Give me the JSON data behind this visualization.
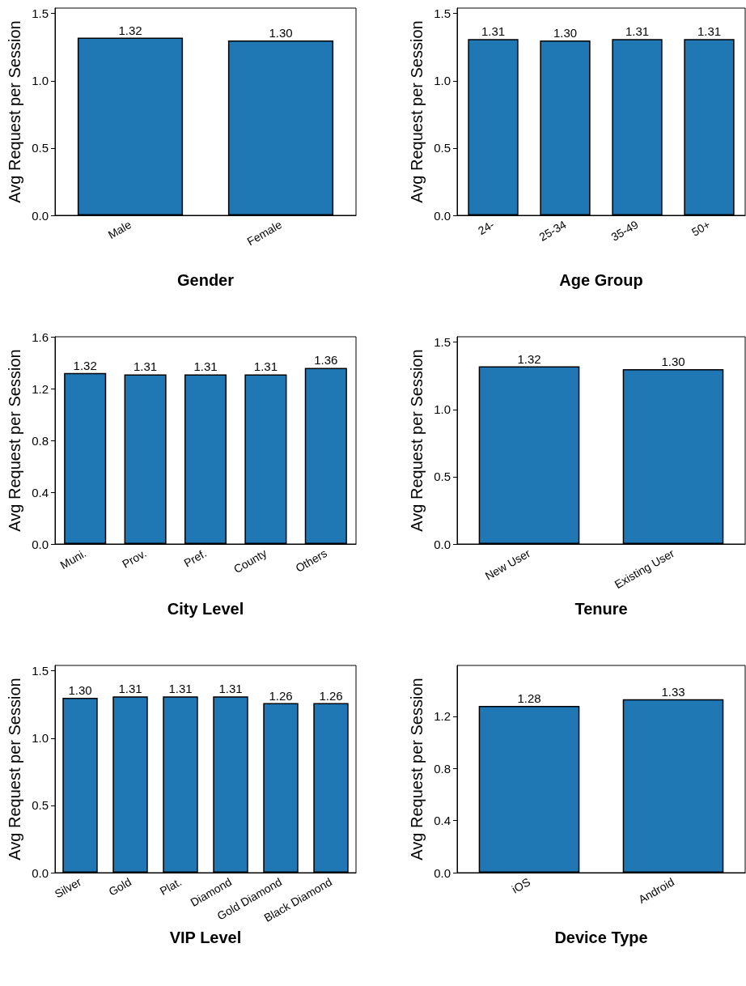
{
  "chart_data": [
    {
      "type": "bar",
      "xlabel": "Gender",
      "ylabel": "Avg Request per Session",
      "categories": [
        "Male",
        "Female"
      ],
      "values": [
        1.32,
        1.3
      ],
      "value_labels": [
        "1.32",
        "1.30"
      ],
      "color": "#1f77b4",
      "ylim": [
        0,
        1.54
      ],
      "yticks": [
        {
          "value": 0,
          "label": "0.0"
        },
        {
          "value": 0.5,
          "label": "0.5"
        },
        {
          "value": 1,
          "label": "1.0"
        },
        {
          "value": 1.5,
          "label": "1.5"
        }
      ]
    },
    {
      "type": "bar",
      "xlabel": "Age Group",
      "ylabel": "Avg Request per Session",
      "categories": [
        "24-",
        "25-34",
        "35-49",
        "50+"
      ],
      "values": [
        1.31,
        1.3,
        1.31,
        1.31
      ],
      "value_labels": [
        "1.31",
        "1.30",
        "1.31",
        "1.31"
      ],
      "color": "#1f77b4",
      "ylim": [
        0,
        1.54
      ],
      "yticks": [
        {
          "value": 0,
          "label": "0.0"
        },
        {
          "value": 0.5,
          "label": "0.5"
        },
        {
          "value": 1,
          "label": "1.0"
        },
        {
          "value": 1.5,
          "label": "1.5"
        }
      ]
    },
    {
      "type": "bar",
      "xlabel": "City Level",
      "ylabel": "Avg Request per Session",
      "categories": [
        "Muni.",
        "Prov.",
        "Pref.",
        "County",
        "Others"
      ],
      "values": [
        1.32,
        1.31,
        1.31,
        1.31,
        1.36
      ],
      "value_labels": [
        "1.32",
        "1.31",
        "1.31",
        "1.31",
        "1.36"
      ],
      "color": "#1f77b4",
      "ylim": [
        0,
        1.6
      ],
      "yticks": [
        {
          "value": 0,
          "label": "0.0"
        },
        {
          "value": 0.4,
          "label": "0.4"
        },
        {
          "value": 0.8,
          "label": "0.8"
        },
        {
          "value": 1.2,
          "label": "1.2"
        },
        {
          "value": 1.6,
          "label": "1.6"
        }
      ]
    },
    {
      "type": "bar",
      "xlabel": "Tenure",
      "ylabel": "Avg Request per Session",
      "categories": [
        "New User",
        "Existing User"
      ],
      "values": [
        1.32,
        1.3
      ],
      "value_labels": [
        "1.32",
        "1.30"
      ],
      "color": "#1f77b4",
      "ylim": [
        0,
        1.54
      ],
      "yticks": [
        {
          "value": 0,
          "label": "0.0"
        },
        {
          "value": 0.5,
          "label": "0.5"
        },
        {
          "value": 1,
          "label": "1.0"
        },
        {
          "value": 1.5,
          "label": "1.5"
        }
      ]
    },
    {
      "type": "bar",
      "xlabel": "VIP Level",
      "ylabel": "Avg Request per Session",
      "categories": [
        "Silver",
        "Gold",
        "Plat.",
        "Diamond",
        "Gold Diamond",
        "Black Diamond"
      ],
      "values": [
        1.3,
        1.31,
        1.31,
        1.31,
        1.26,
        1.26
      ],
      "value_labels": [
        "1.30",
        "1.31",
        "1.31",
        "1.31",
        "1.26",
        "1.26"
      ],
      "color": "#1f77b4",
      "ylim": [
        0,
        1.54
      ],
      "yticks": [
        {
          "value": 0,
          "label": "0.0"
        },
        {
          "value": 0.5,
          "label": "0.5"
        },
        {
          "value": 1,
          "label": "1.0"
        },
        {
          "value": 1.5,
          "label": "1.5"
        }
      ]
    },
    {
      "type": "bar",
      "xlabel": "Device Type",
      "ylabel": "Avg Request per Session",
      "categories": [
        "iOS",
        "Android"
      ],
      "values": [
        1.28,
        1.33
      ],
      "value_labels": [
        "1.28",
        "1.33"
      ],
      "color": "#1f77b4",
      "ylim": [
        0,
        1.59
      ],
      "yticks": [
        {
          "value": 0,
          "label": "0.0"
        },
        {
          "value": 0.4,
          "label": "0.4"
        },
        {
          "value": 0.8,
          "label": "0.8"
        },
        {
          "value": 1.2,
          "label": "1.2"
        }
      ]
    }
  ]
}
